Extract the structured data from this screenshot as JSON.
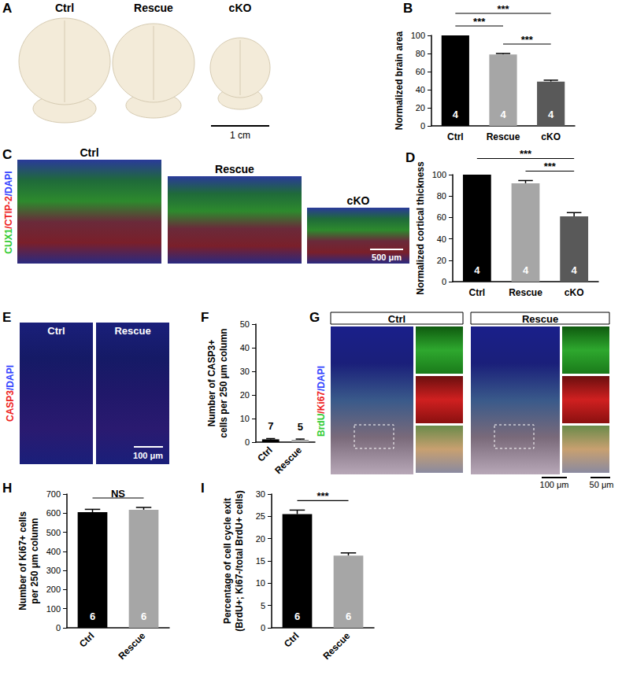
{
  "chart_data": [
    {
      "type": "bar",
      "panel": "B",
      "ylabel": "Normalized brain area",
      "categories": [
        "Ctrl",
        "Rescue",
        "cKO"
      ],
      "values": [
        100,
        79,
        49
      ],
      "errors": [
        0,
        1,
        1.5
      ],
      "n": [
        4,
        4,
        4
      ],
      "colors": [
        "#000000",
        "#a6a6a6",
        "#595959"
      ],
      "ylim": [
        0,
        100
      ],
      "yticks": [
        0,
        20,
        40,
        60,
        80,
        100
      ],
      "grid": false,
      "significance": [
        {
          "pair": [
            1,
            2
          ],
          "label": "***"
        },
        {
          "pair": [
            0,
            1
          ],
          "label": "***"
        },
        {
          "pair": [
            0,
            2
          ],
          "label": "***"
        }
      ]
    },
    {
      "type": "bar",
      "panel": "D",
      "ylabel": "Normalized cortical thickness",
      "categories": [
        "Ctrl",
        "Rescue",
        "cKO"
      ],
      "values": [
        100,
        92,
        61
      ],
      "errors": [
        0,
        2.5,
        3.5
      ],
      "n": [
        4,
        4,
        4
      ],
      "colors": [
        "#000000",
        "#a6a6a6",
        "#595959"
      ],
      "ylim": [
        0,
        100
      ],
      "yticks": [
        0,
        20,
        40,
        60,
        80,
        100
      ],
      "grid": false,
      "significance": [
        {
          "pair": [
            1,
            2
          ],
          "label": "***"
        },
        {
          "pair": [
            0,
            2
          ],
          "label": "***"
        }
      ]
    },
    {
      "type": "bar",
      "panel": "F",
      "ylabel": "Number of CASP3+\ncells per 250 μm column",
      "categories": [
        "Ctrl",
        "Rescue"
      ],
      "values": [
        1.2,
        1.0
      ],
      "errors": [
        0.3,
        0.3
      ],
      "n": [
        7,
        5
      ],
      "colors": [
        "#000000",
        "#a6a6a6"
      ],
      "ylim": [
        0,
        50
      ],
      "yticks": [
        0,
        10,
        20,
        30,
        40,
        50
      ],
      "grid": false
    },
    {
      "type": "bar",
      "panel": "H",
      "ylabel": "Number of Ki67+ cells\nper 250 μm column",
      "categories": [
        "Ctrl",
        "Rescue"
      ],
      "values": [
        605,
        618
      ],
      "errors": [
        15,
        12
      ],
      "n": [
        6,
        6
      ],
      "colors": [
        "#000000",
        "#a6a6a6"
      ],
      "ylim": [
        0,
        700
      ],
      "yticks": [
        0,
        100,
        200,
        300,
        400,
        500,
        600,
        700
      ],
      "grid": false,
      "significance": [
        {
          "pair": [
            0,
            1
          ],
          "label": "NS"
        }
      ]
    },
    {
      "type": "bar",
      "panel": "I",
      "ylabel": "Percentage of cell cycle exit\n(BrdU+; Ki67-/total BrdU+ cells)",
      "categories": [
        "Ctrl",
        "Rescue"
      ],
      "values": [
        25.5,
        16.2
      ],
      "errors": [
        0.9,
        0.6
      ],
      "n": [
        6,
        6
      ],
      "colors": [
        "#000000",
        "#a6a6a6"
      ],
      "ylim": [
        0,
        30
      ],
      "yticks": [
        0,
        5,
        10,
        15,
        20,
        25,
        30
      ],
      "grid": false,
      "significance": [
        {
          "pair": [
            0,
            1
          ],
          "label": "***"
        }
      ]
    }
  ],
  "images": [
    {
      "panel": "A",
      "labels": [
        "Ctrl",
        "Rescue",
        "cKO"
      ],
      "scale_bar": "1 cm"
    },
    {
      "panel": "C",
      "stain": [
        {
          "text": "CUX1",
          "color": "#33cc33"
        },
        {
          "text": "/CTIP-2",
          "color": "#ee2222"
        },
        {
          "text": "/DAPI",
          "color": "#3344ff"
        }
      ],
      "labels": [
        "Ctrl",
        "Rescue",
        "cKO"
      ],
      "scale_bar": "500 μm"
    },
    {
      "panel": "E",
      "stain": [
        {
          "text": "CASP3",
          "color": "#ee2222"
        },
        {
          "text": "/DAPI",
          "color": "#3344ff"
        }
      ],
      "labels": [
        "Ctrl",
        "Rescue"
      ],
      "scale_bar": "100 μm"
    },
    {
      "panel": "G",
      "stain": [
        {
          "text": "BrdU",
          "color": "#33cc33"
        },
        {
          "text": "/Ki67",
          "color": "#ee2222"
        },
        {
          "text": "/DAPI",
          "color": "#3344ff"
        }
      ],
      "labels": [
        "Ctrl",
        "Rescue"
      ],
      "scale_bar": "100 μm",
      "inset_scale_bar": "50 μm"
    }
  ]
}
